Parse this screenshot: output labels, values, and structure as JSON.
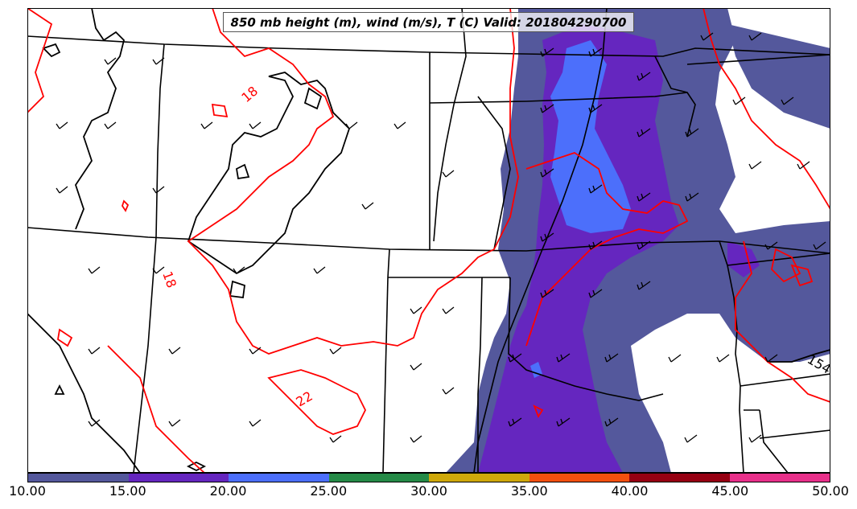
{
  "title": "850 mb height (m), wind (m/s), T (C) Valid: 201804290700",
  "colorbar": {
    "ticks": [
      "10.00",
      "15.00",
      "20.00",
      "25.00",
      "30.00",
      "35.00",
      "40.00",
      "45.00",
      "50.00"
    ],
    "colors": [
      "#54589c",
      "#6526bf",
      "#4c6ffb",
      "#258a47",
      "#cfa80a",
      "#f2500e",
      "#960012",
      "#e8308a"
    ]
  },
  "contour_labels": {
    "temp_18_north": "18",
    "temp_18_west": "18",
    "temp_22_south": "22",
    "height_154": "154"
  },
  "legend_colors": {
    "height_contour": "#000000",
    "temperature_contour": "#ff0000",
    "wind_barb": "#000000"
  }
}
